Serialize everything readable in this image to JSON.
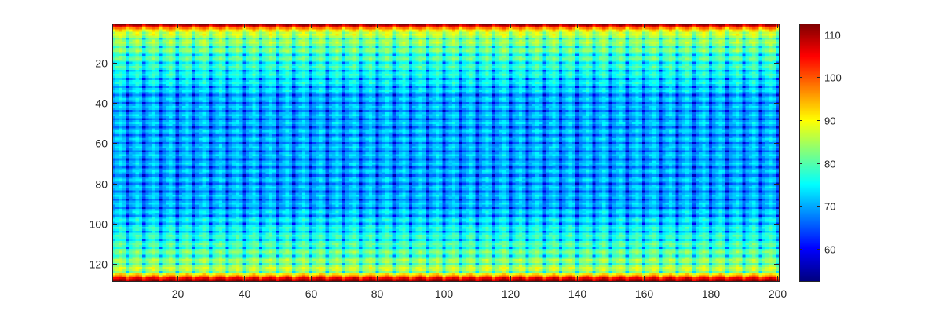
{
  "chart_data": {
    "type": "heatmap",
    "title": "",
    "xlabel": "",
    "ylabel": "",
    "rows": 128,
    "cols": 200,
    "xlim": [
      0.5,
      200.5
    ],
    "ylim": [
      0.5,
      128.5
    ],
    "y_direction": "reverse",
    "x_ticks": [
      20,
      40,
      60,
      80,
      100,
      120,
      140,
      160,
      180,
      200
    ],
    "x_tick_labels": [
      "20",
      "40",
      "60",
      "80",
      "100",
      "120",
      "140",
      "160",
      "180",
      "200"
    ],
    "y_ticks": [
      20,
      40,
      60,
      80,
      100,
      120
    ],
    "y_tick_labels": [
      "20",
      "40",
      "60",
      "80",
      "100",
      "120"
    ],
    "colormap": "jet",
    "clim": [
      52.5,
      112.5
    ],
    "colorbar": {
      "placement": "right",
      "ticks": [
        60,
        70,
        80,
        90,
        100,
        110
      ],
      "tick_labels": [
        "60",
        "70",
        "80",
        "90",
        "100",
        "110"
      ]
    },
    "pattern": {
      "edge_rows_value": 108,
      "center_value": 71,
      "column_period": 5,
      "row_period": 4
    }
  }
}
